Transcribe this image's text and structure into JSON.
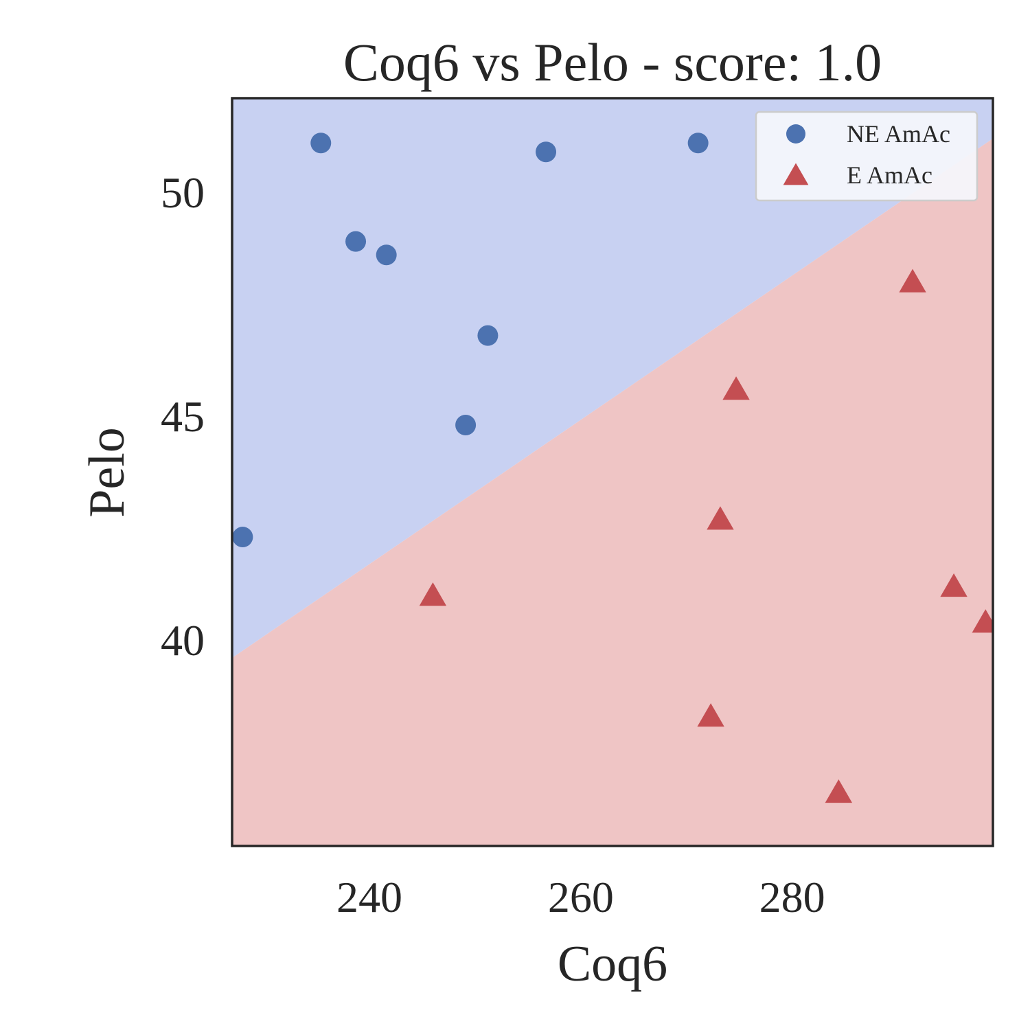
{
  "chart_data": {
    "type": "scatter",
    "title": "Coq6 vs Pelo - score: 1.0",
    "xlabel": "Coq6",
    "ylabel": "Pelo",
    "xlim": [
      227,
      299
    ],
    "ylim": [
      35.4,
      52.1
    ],
    "xticks": [
      240,
      260,
      280
    ],
    "yticks": [
      40,
      45,
      50
    ],
    "grid": false,
    "legend_position": "top-right",
    "decision_boundary": {
      "points": [
        [
          227,
          39.6
        ],
        [
          299,
          51.2
        ]
      ],
      "above_class": "NE AmAc",
      "below_class": "E AmAc",
      "above_color": "#c8d1f2",
      "below_color": "#efc5c5"
    },
    "series": [
      {
        "name": "NE AmAc",
        "marker": "circle",
        "color": "#4c72b0",
        "points": [
          [
            235.4,
            51.1
          ],
          [
            238.7,
            48.9
          ],
          [
            241.6,
            48.6
          ],
          [
            249.1,
            44.8
          ],
          [
            251.2,
            46.8
          ],
          [
            256.7,
            50.9
          ],
          [
            271.1,
            51.1
          ],
          [
            228.0,
            42.3
          ]
        ]
      },
      {
        "name": "E AmAc",
        "marker": "triangle",
        "color": "#c44e52",
        "points": [
          [
            246.0,
            41.0
          ],
          [
            272.3,
            38.3
          ],
          [
            273.2,
            42.7
          ],
          [
            274.7,
            45.6
          ],
          [
            284.4,
            36.6
          ],
          [
            291.4,
            48.0
          ],
          [
            295.3,
            41.2
          ],
          [
            298.3,
            40.4
          ]
        ]
      }
    ]
  }
}
